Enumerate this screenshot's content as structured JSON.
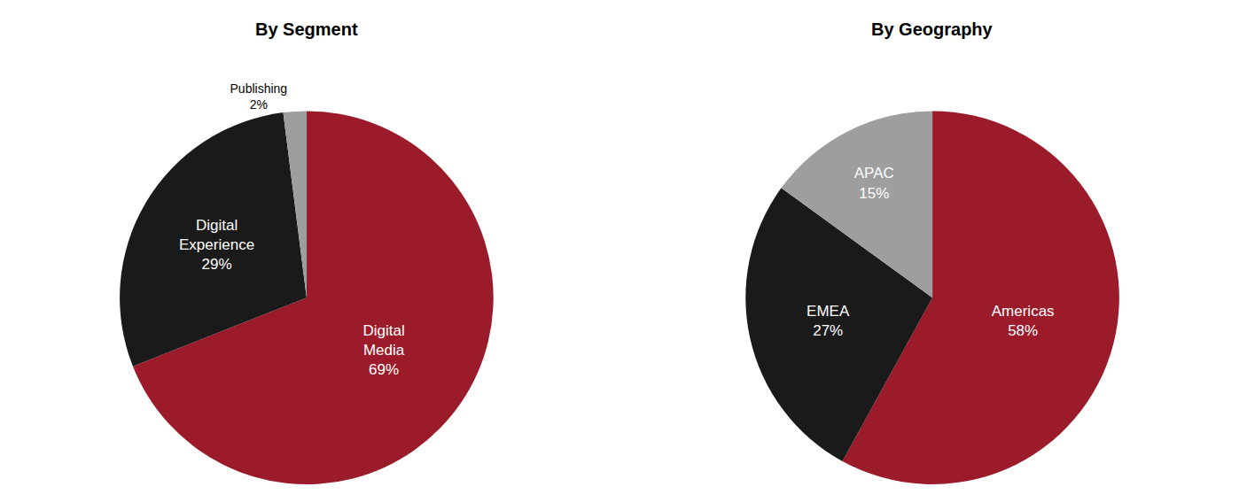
{
  "chart_data": [
    {
      "type": "pie",
      "title": "By Segment",
      "categories": [
        "Digital Media",
        "Digital Experience",
        "Publishing"
      ],
      "values": [
        69,
        29,
        2
      ],
      "value_labels": [
        "69%",
        "29%",
        "2%"
      ],
      "colors": [
        "#9B1B2A",
        "#1A1A1A",
        "#9E9E9E"
      ],
      "data_labels": true
    },
    {
      "type": "pie",
      "title": "By Geography",
      "categories": [
        "Americas",
        "EMEA",
        "APAC"
      ],
      "values": [
        58,
        27,
        15
      ],
      "value_labels": [
        "58%",
        "27%",
        "15%"
      ],
      "colors": [
        "#9B1B2A",
        "#1A1A1A",
        "#9E9E9E"
      ],
      "data_labels": true
    }
  ]
}
